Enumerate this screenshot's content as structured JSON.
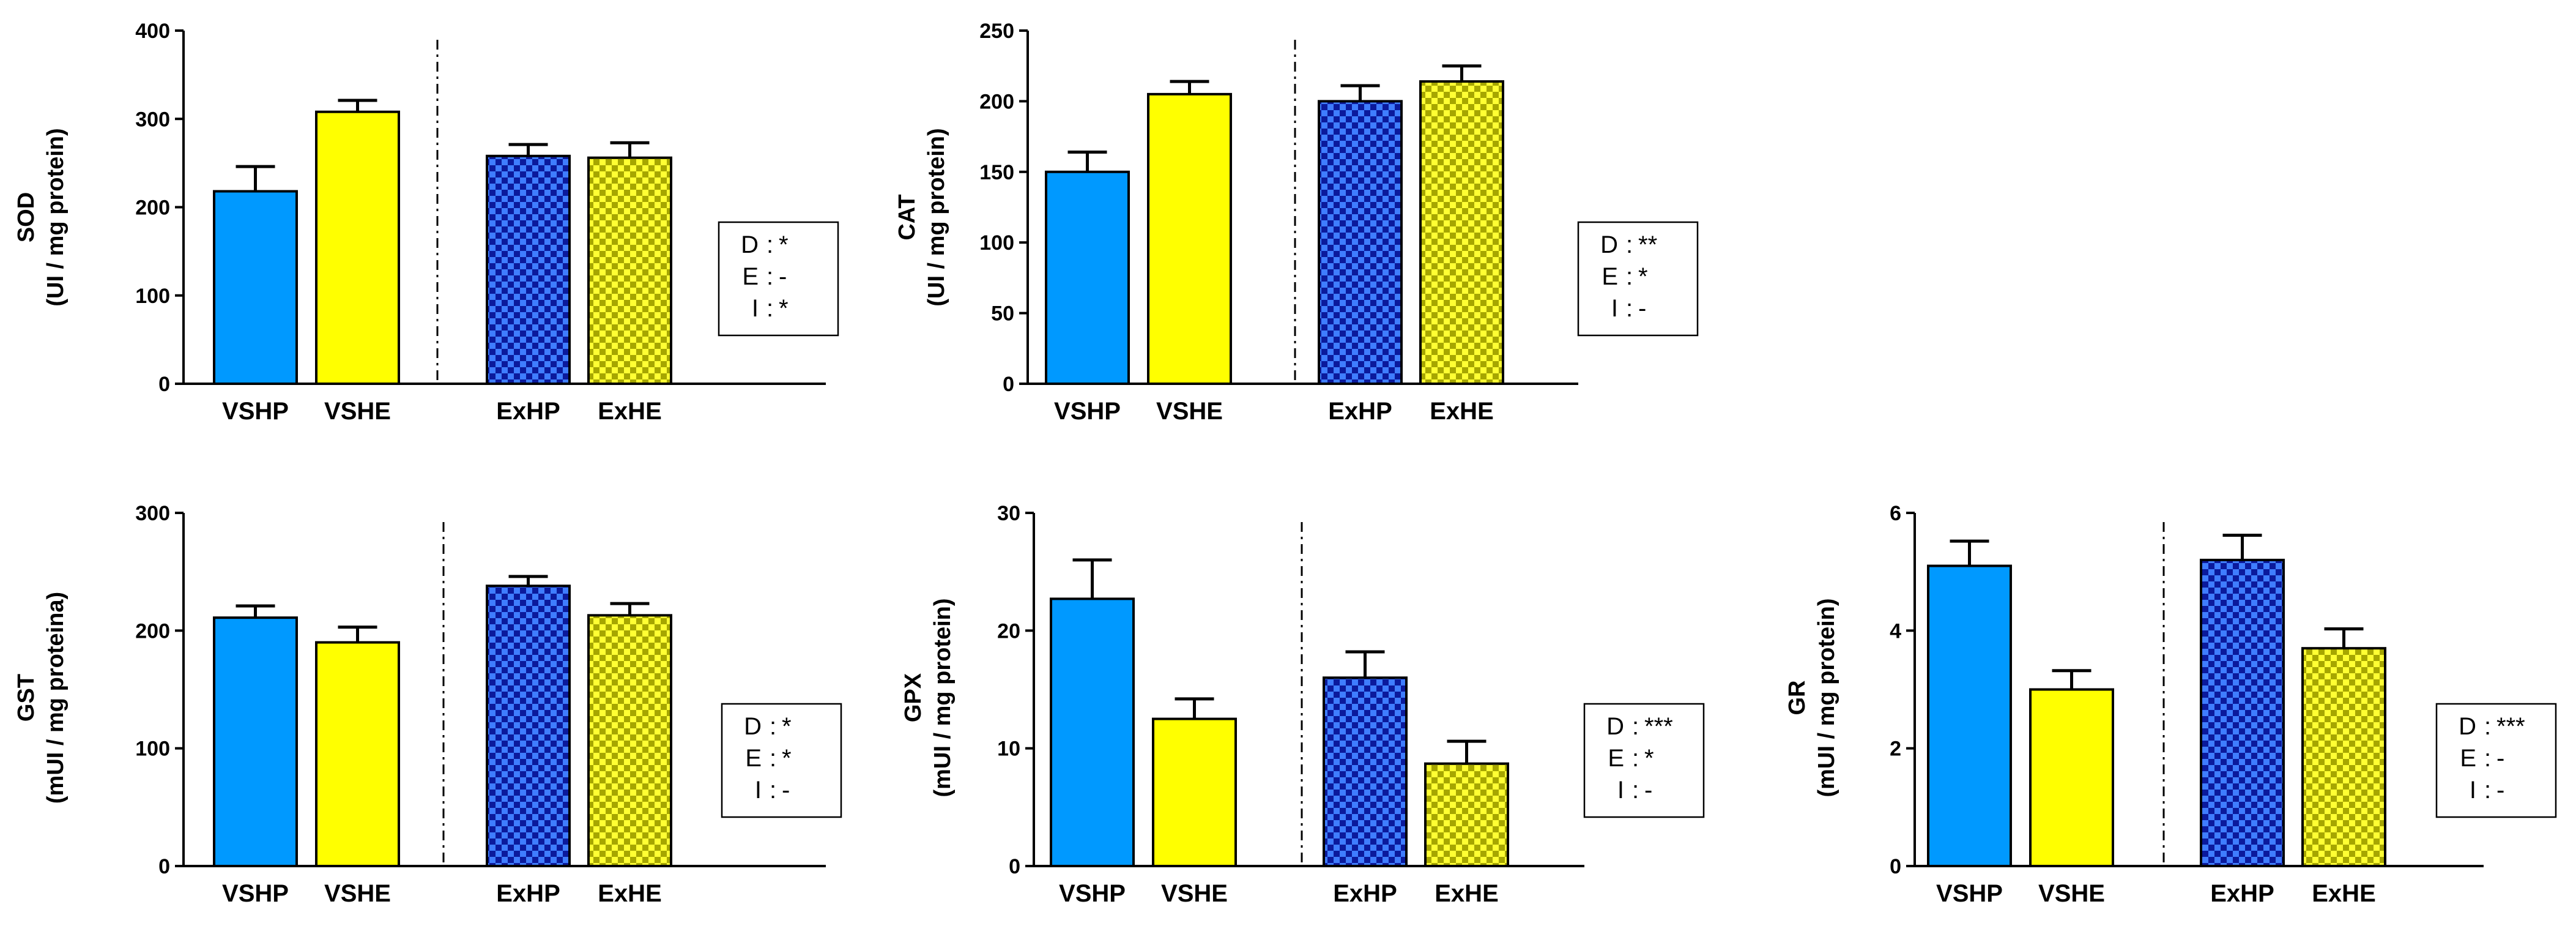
{
  "chart_data": [
    {
      "type": "bar",
      "ylabel": "SOD",
      "ylabel_unit": "(UI / mg protein)",
      "ylim": [
        0,
        400
      ],
      "yticks": [
        0,
        100,
        200,
        300,
        400
      ],
      "categories": [
        "VSHP",
        "VSHE",
        "ExHP",
        "ExHE"
      ],
      "values": [
        218,
        308,
        258,
        256
      ],
      "errors": [
        28,
        13,
        13,
        17
      ],
      "stats": [
        {
          "key": "D",
          "value": "*"
        },
        {
          "key": "E",
          "value": "-"
        },
        {
          "key": "I",
          "value": "*"
        }
      ]
    },
    {
      "type": "bar",
      "ylabel": "CAT",
      "ylabel_unit": "(UI / mg protein)",
      "ylim": [
        0,
        250
      ],
      "yticks": [
        0,
        50,
        100,
        150,
        200,
        250
      ],
      "categories": [
        "VSHP",
        "VSHE",
        "ExHP",
        "ExHE"
      ],
      "values": [
        150,
        205,
        200,
        214
      ],
      "errors": [
        14,
        9,
        11,
        11
      ],
      "stats": [
        {
          "key": "D",
          "value": "**"
        },
        {
          "key": "E",
          "value": "*"
        },
        {
          "key": "I",
          "value": "-"
        }
      ]
    },
    {
      "type": "bar",
      "ylabel": "GST",
      "ylabel_unit": "(mUI / mg proteina)",
      "ylim": [
        0,
        300
      ],
      "yticks": [
        0,
        100,
        200,
        300
      ],
      "categories": [
        "VSHP",
        "VSHE",
        "ExHP",
        "ExHE"
      ],
      "values": [
        211,
        190,
        238,
        213
      ],
      "errors": [
        10,
        13,
        8,
        10
      ],
      "stats": [
        {
          "key": "D",
          "value": "*"
        },
        {
          "key": "E",
          "value": "*"
        },
        {
          "key": "I",
          "value": "-"
        }
      ]
    },
    {
      "type": "bar",
      "ylabel": "GPX",
      "ylabel_unit": "(mUI / mg protein)",
      "ylim": [
        0,
        30
      ],
      "yticks": [
        0,
        10,
        20,
        30
      ],
      "categories": [
        "VSHP",
        "VSHE",
        "ExHP",
        "ExHE"
      ],
      "values": [
        22.7,
        12.5,
        16.0,
        8.7
      ],
      "errors": [
        3.3,
        1.7,
        2.2,
        1.9
      ],
      "stats": [
        {
          "key": "D",
          "value": "***"
        },
        {
          "key": "E",
          "value": "*"
        },
        {
          "key": "I",
          "value": "-"
        }
      ]
    },
    {
      "type": "bar",
      "ylabel": "GR",
      "ylabel_unit": "(mUI / mg protein)",
      "ylim": [
        0,
        6
      ],
      "yticks": [
        0,
        2,
        4,
        6
      ],
      "categories": [
        "VSHP",
        "VSHE",
        "ExHP",
        "ExHE"
      ],
      "values": [
        5.1,
        3.0,
        5.2,
        3.7
      ],
      "errors": [
        0.42,
        0.32,
        0.42,
        0.33
      ],
      "stats": [
        {
          "key": "D",
          "value": "***"
        },
        {
          "key": "E",
          "value": "-"
        },
        {
          "key": "I",
          "value": "-"
        }
      ]
    }
  ],
  "colors": {
    "VSHP": "#0099ff",
    "VSHE": "#ffff00",
    "ExHP": "#1a2fe0",
    "ExHE": "#d9d900"
  }
}
